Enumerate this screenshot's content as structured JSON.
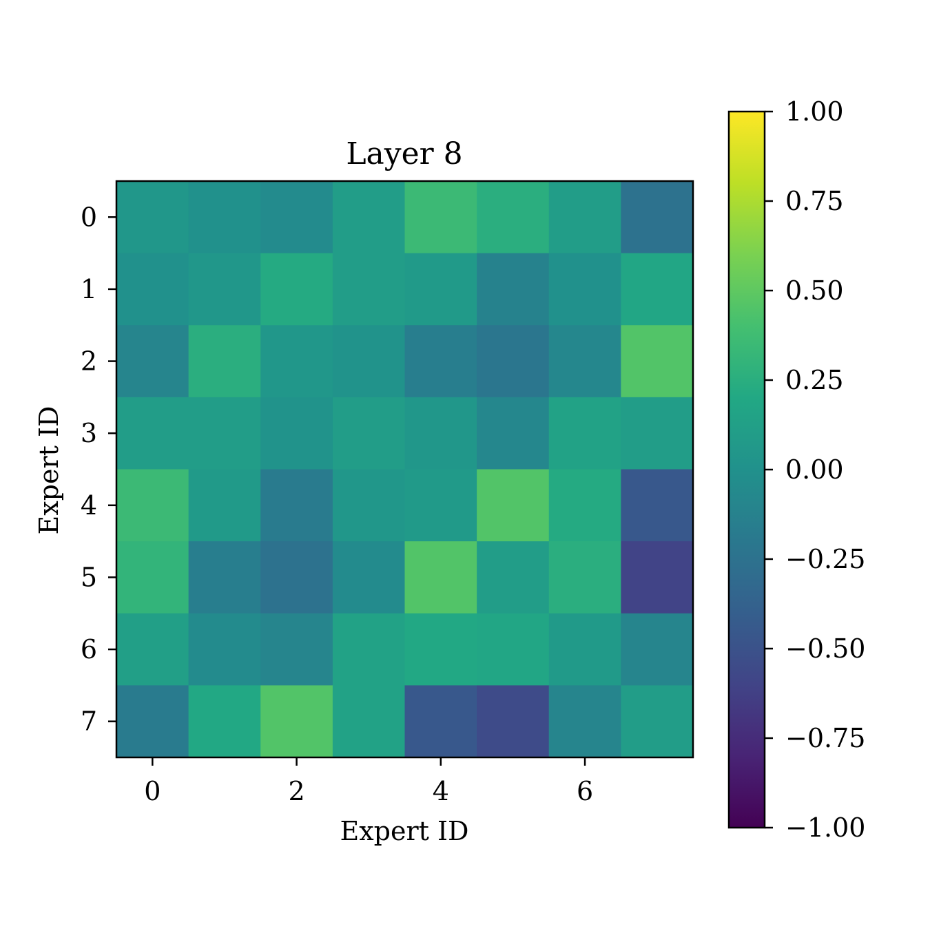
{
  "chart_data": {
    "type": "heatmap",
    "title": "Layer 8",
    "xlabel": "Expert ID",
    "ylabel": "Expert ID",
    "x_ticks": [
      "0",
      "2",
      "4",
      "6"
    ],
    "y_ticks": [
      "0",
      "1",
      "2",
      "3",
      "4",
      "5",
      "6",
      "7"
    ],
    "rows": [
      0,
      1,
      2,
      3,
      4,
      5,
      6,
      7
    ],
    "cols": [
      0,
      1,
      2,
      3,
      4,
      5,
      6,
      7
    ],
    "values": [
      [
        0.05,
        0.0,
        -0.05,
        0.1,
        0.35,
        0.25,
        0.1,
        -0.25
      ],
      [
        0.0,
        0.05,
        0.22,
        0.1,
        0.08,
        -0.12,
        0.0,
        0.18
      ],
      [
        -0.1,
        0.25,
        0.05,
        0.02,
        -0.15,
        -0.22,
        -0.08,
        0.45
      ],
      [
        0.1,
        0.1,
        0.02,
        0.1,
        0.05,
        -0.08,
        0.15,
        0.1
      ],
      [
        0.35,
        0.08,
        -0.18,
        0.05,
        0.08,
        0.45,
        0.22,
        -0.45
      ],
      [
        0.3,
        -0.15,
        -0.25,
        -0.05,
        0.45,
        0.1,
        0.25,
        -0.6
      ],
      [
        0.12,
        -0.05,
        -0.1,
        0.15,
        0.2,
        0.18,
        0.08,
        -0.1
      ],
      [
        -0.18,
        0.2,
        0.45,
        0.15,
        -0.45,
        -0.55,
        -0.1,
        0.1
      ]
    ],
    "colormap": "viridis",
    "vmin": -1.0,
    "vmax": 1.0,
    "colorbar_ticks": [
      "1.00",
      "0.75",
      "0.50",
      "0.25",
      "0.00",
      "−0.25",
      "−0.50",
      "−0.75",
      "−1.00"
    ],
    "colorbar_tick_values": [
      1.0,
      0.75,
      0.5,
      0.25,
      0.0,
      -0.25,
      -0.5,
      -0.75,
      -1.0
    ],
    "grid": false
  }
}
